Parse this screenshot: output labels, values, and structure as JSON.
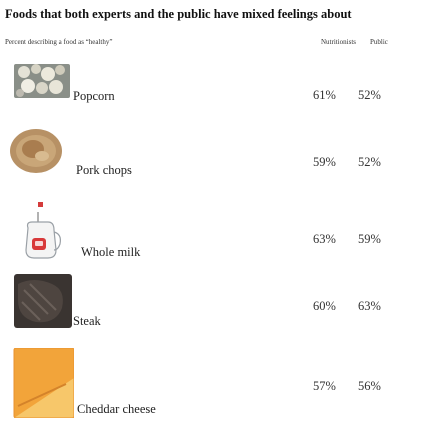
{
  "title": "Foods that both experts and the public have mixed feelings about",
  "subtitle": "Percent describing a food as “healthy”",
  "columns": {
    "nutritionists": "Nutritionists",
    "public": "Public"
  },
  "chart_data": {
    "type": "table",
    "title": "Foods that both experts and the public have mixed feelings about",
    "subtitle": "Percent describing a food as “healthy”",
    "columns": [
      "Nutritionists",
      "Public"
    ],
    "rows": [
      {
        "food": "Popcorn",
        "nutritionists": "61%",
        "public": "52%"
      },
      {
        "food": "Pork chops",
        "nutritionists": "59%",
        "public": "52%"
      },
      {
        "food": "Whole milk",
        "nutritionists": "63%",
        "public": "59%"
      },
      {
        "food": "Steak",
        "nutritionists": "60%",
        "public": "63%"
      },
      {
        "food": "Cheddar cheese",
        "nutritionists": "57%",
        "public": "56%"
      }
    ]
  }
}
